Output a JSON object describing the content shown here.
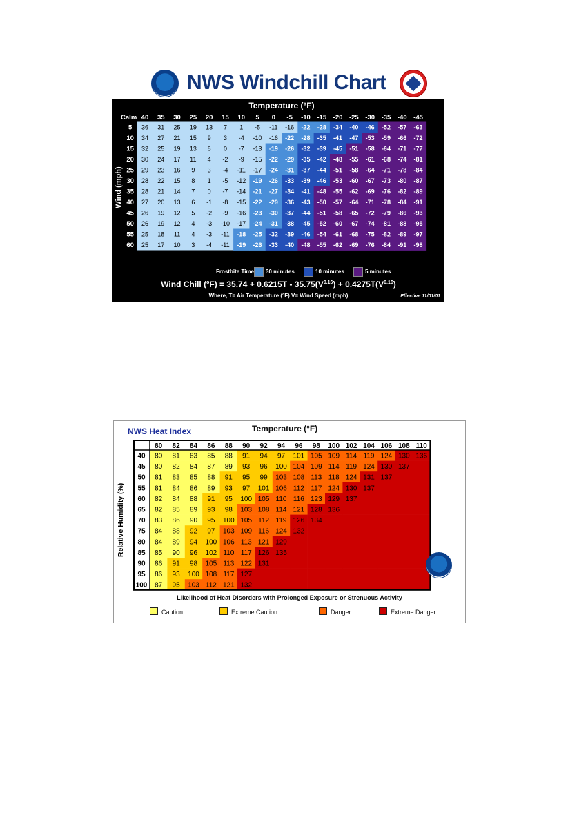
{
  "chart_data": [
    {
      "type": "heatmap",
      "title": "NWS Windchill Chart",
      "xlabel": "Temperature (°F)",
      "ylabel": "Wind (mph)",
      "x": [
        "Calm",
        "40",
        "35",
        "30",
        "25",
        "20",
        "15",
        "10",
        "5",
        "0",
        "-5",
        "-10",
        "-15",
        "-20",
        "-25",
        "-30",
        "-35",
        "-40",
        "-45"
      ],
      "y": [
        5,
        10,
        15,
        20,
        25,
        30,
        35,
        40,
        45,
        50,
        55,
        60
      ],
      "values": [
        [
          36,
          31,
          25,
          19,
          13,
          7,
          1,
          -5,
          -11,
          -16,
          -22,
          -28,
          -34,
          -40,
          -46,
          -52,
          -57,
          -63
        ],
        [
          34,
          27,
          21,
          15,
          9,
          3,
          -4,
          -10,
          -16,
          -22,
          -28,
          -35,
          -41,
          -47,
          -53,
          -59,
          -66,
          -72
        ],
        [
          32,
          25,
          19,
          13,
          6,
          0,
          -7,
          -13,
          -19,
          -26,
          -32,
          -39,
          -45,
          -51,
          -58,
          -64,
          -71,
          -77
        ],
        [
          30,
          24,
          17,
          11,
          4,
          -2,
          -9,
          -15,
          -22,
          -29,
          -35,
          -42,
          -48,
          -55,
          -61,
          -68,
          -74,
          -81
        ],
        [
          29,
          23,
          16,
          9,
          3,
          -4,
          -11,
          -17,
          -24,
          -31,
          -37,
          -44,
          -51,
          -58,
          -64,
          -71,
          -78,
          -84
        ],
        [
          28,
          22,
          15,
          8,
          1,
          -5,
          -12,
          -19,
          -26,
          -33,
          -39,
          -46,
          -53,
          -60,
          -67,
          -73,
          -80,
          -87
        ],
        [
          28,
          21,
          14,
          7,
          0,
          -7,
          -14,
          -21,
          -27,
          -34,
          -41,
          -48,
          -55,
          -62,
          -69,
          -76,
          -82,
          -89
        ],
        [
          27,
          20,
          13,
          6,
          -1,
          -8,
          -15,
          -22,
          -29,
          -36,
          -43,
          -50,
          -57,
          -64,
          -71,
          -78,
          -84,
          -91
        ],
        [
          26,
          19,
          12,
          5,
          -2,
          -9,
          -16,
          -23,
          -30,
          -37,
          -44,
          -51,
          -58,
          -65,
          -72,
          -79,
          -86,
          -93
        ],
        [
          26,
          19,
          12,
          4,
          -3,
          -10,
          -17,
          -24,
          -31,
          -38,
          -45,
          -52,
          -60,
          -67,
          -74,
          -81,
          -88,
          -95
        ],
        [
          25,
          18,
          11,
          4,
          -3,
          -11,
          -18,
          -25,
          -32,
          -39,
          -46,
          -54,
          -61,
          -68,
          -75,
          -82,
          -89,
          -97
        ],
        [
          25,
          17,
          10,
          3,
          -4,
          -11,
          -19,
          -26,
          -33,
          -40,
          -48,
          -55,
          -62,
          -69,
          -76,
          -84,
          -91,
          -98
        ]
      ],
      "frostbite_times": {
        "label": "Frostbite Times",
        "categories": [
          {
            "label": "30 minutes",
            "color": "#4a8fd9"
          },
          {
            "label": "10 minutes",
            "color": "#2350b8"
          },
          {
            "label": "5 minutes",
            "color": "#5a1a82"
          }
        ]
      },
      "formula": "Wind Chill (°F) = 35.74 + 0.6215T - 35.75(V^0.16) + 0.4275T(V^0.16)",
      "formula_parts": {
        "prefix": "Wind Chill (",
        "unit_sup": "o",
        "mid": "F) = 35.74 + 0.6215T - 35.75(V",
        "exp1": "0.16",
        "mid2": ") + 0.4275T(V",
        "exp2": "0.16",
        "suffix": ")"
      },
      "where": "Where, T= Air Temperature (°F)   V= Wind Speed (mph)",
      "effective": "Effective 11/01/01",
      "colors": {
        "cell": "#b9dcf7",
        "zone_30": "#4a8fd9",
        "zone_10": "#2350b8",
        "zone_5": "#5a1a82",
        "background": "#000000"
      }
    },
    {
      "type": "heatmap",
      "title": "NWS Heat Index",
      "xlabel": "Temperature (°F)",
      "ylabel": "Relative Humidity (%)",
      "x": [
        80,
        82,
        84,
        86,
        88,
        90,
        92,
        94,
        96,
        98,
        100,
        102,
        104,
        106,
        108,
        110
      ],
      "y": [
        40,
        45,
        50,
        55,
        60,
        65,
        70,
        75,
        80,
        85,
        90,
        95,
        100
      ],
      "values": [
        [
          80,
          81,
          83,
          85,
          88,
          91,
          94,
          97,
          101,
          105,
          109,
          114,
          119,
          124,
          130,
          136
        ],
        [
          80,
          82,
          84,
          87,
          89,
          93,
          96,
          100,
          104,
          109,
          114,
          119,
          124,
          130,
          137,
          null
        ],
        [
          81,
          83,
          85,
          88,
          91,
          95,
          99,
          103,
          108,
          113,
          118,
          124,
          131,
          137,
          null,
          null
        ],
        [
          81,
          84,
          86,
          89,
          93,
          97,
          101,
          106,
          112,
          117,
          124,
          130,
          137,
          null,
          null,
          null
        ],
        [
          82,
          84,
          88,
          91,
          95,
          100,
          105,
          110,
          116,
          123,
          129,
          137,
          null,
          null,
          null,
          null
        ],
        [
          82,
          85,
          89,
          93,
          98,
          103,
          108,
          114,
          121,
          128,
          136,
          null,
          null,
          null,
          null,
          null
        ],
        [
          83,
          86,
          90,
          95,
          100,
          105,
          112,
          119,
          126,
          134,
          null,
          null,
          null,
          null,
          null,
          null
        ],
        [
          84,
          88,
          92,
          97,
          103,
          109,
          116,
          124,
          132,
          null,
          null,
          null,
          null,
          null,
          null,
          null
        ],
        [
          84,
          89,
          94,
          100,
          106,
          113,
          121,
          129,
          null,
          null,
          null,
          null,
          null,
          null,
          null,
          null
        ],
        [
          85,
          90,
          96,
          102,
          110,
          117,
          126,
          135,
          null,
          null,
          null,
          null,
          null,
          null,
          null,
          null
        ],
        [
          86,
          91,
          98,
          105,
          113,
          122,
          131,
          null,
          null,
          null,
          null,
          null,
          null,
          null,
          null,
          null
        ],
        [
          86,
          93,
          100,
          108,
          117,
          127,
          null,
          null,
          null,
          null,
          null,
          null,
          null,
          null,
          null,
          null
        ],
        [
          87,
          95,
          103,
          112,
          121,
          132,
          null,
          null,
          null,
          null,
          null,
          null,
          null,
          null,
          null,
          null
        ]
      ],
      "likelihood": "Likelihood of Heat Disorders with Prolonged Exposure or Strenuous Activity",
      "legend": [
        {
          "label": "Caution",
          "color": "#ffff66"
        },
        {
          "label": "Extreme Caution",
          "color": "#ffcc00"
        },
        {
          "label": "Danger",
          "color": "#ff6600"
        },
        {
          "label": "Extreme Danger",
          "color": "#cc0000"
        }
      ],
      "colors": {
        "caution": "#ffff66",
        "extreme_caution": "#ffcc00",
        "danger": "#ff6600",
        "extreme_danger": "#cc0000",
        "grid": "#000000"
      }
    }
  ]
}
